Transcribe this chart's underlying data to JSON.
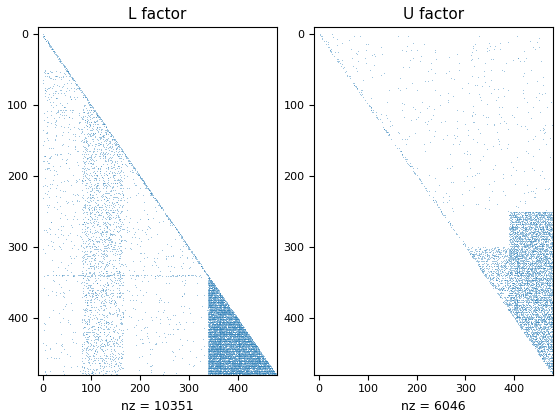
{
  "title1": "L factor",
  "title2": "U factor",
  "xlabel1": "nz = 10351",
  "xlabel2": "nz = 6046",
  "n": 480,
  "nz_L": 10351,
  "nz_U": 6046,
  "marker_color": "#1f77b4",
  "marker_size": 0.8,
  "xlim": [
    -10,
    480
  ],
  "ylim": [
    480,
    -10
  ],
  "xticks": [
    0,
    100,
    200,
    300,
    400
  ],
  "yticks": [
    0,
    100,
    200,
    300,
    400
  ],
  "bg_color": "#ffffff",
  "seed": 42
}
